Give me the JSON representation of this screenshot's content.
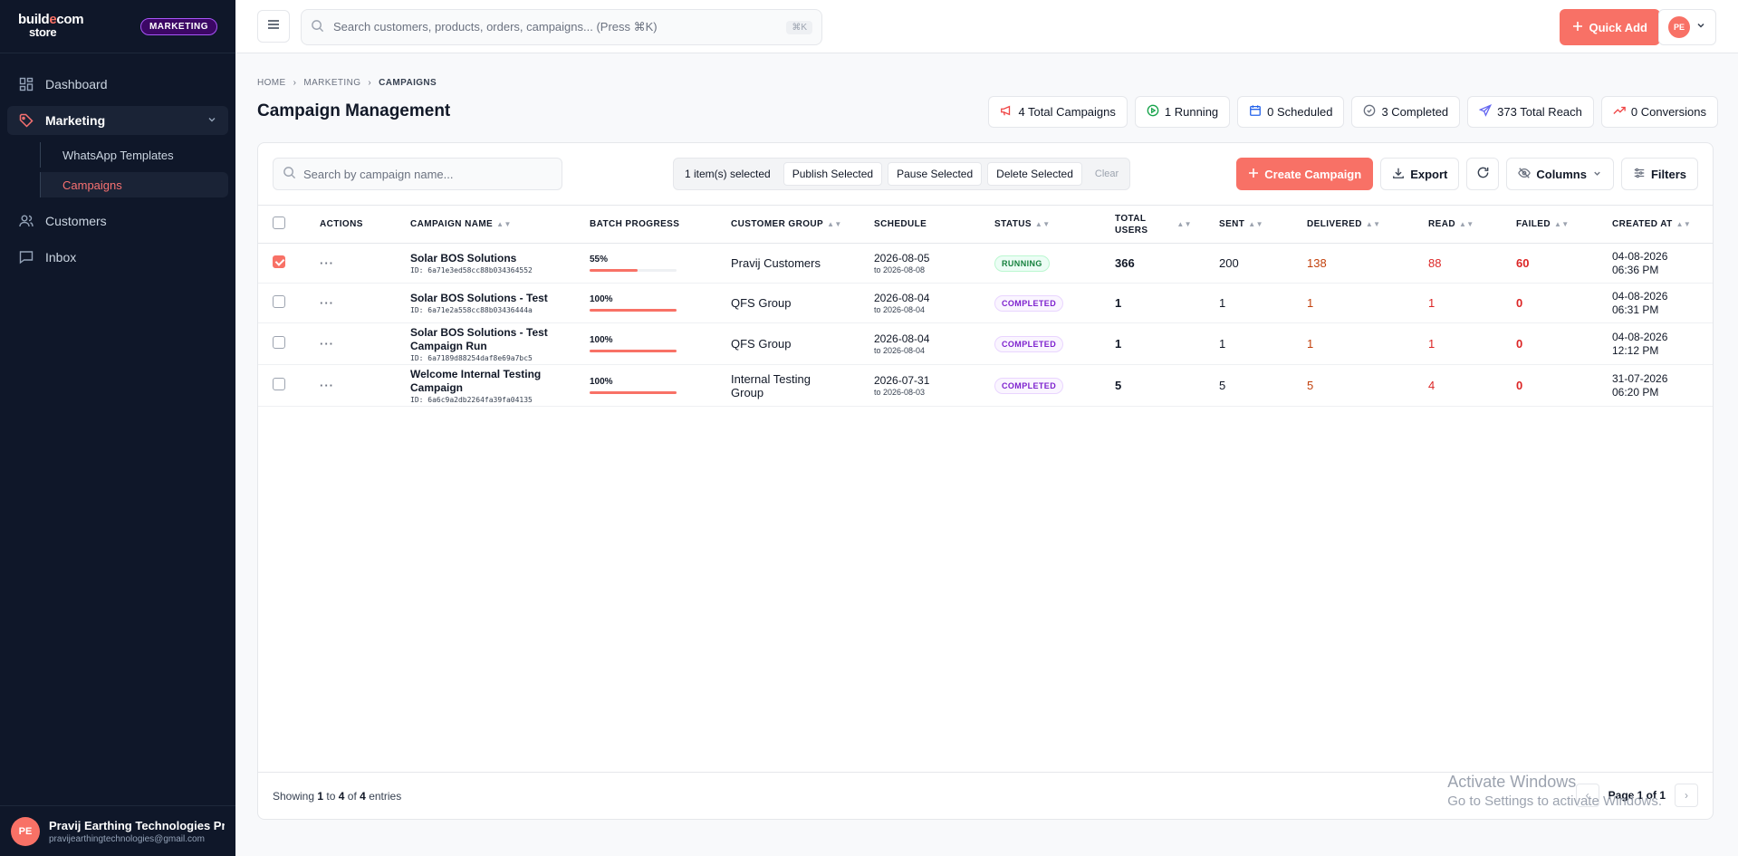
{
  "brand": {
    "name_line1": "build",
    "name_e": "e",
    "name_line1b": "com",
    "name_line2": "store",
    "badge": "MARKETING"
  },
  "sidebar": {
    "items": [
      {
        "label": "Dashboard"
      },
      {
        "label": "Marketing"
      },
      {
        "label": "Customers"
      },
      {
        "label": "Inbox"
      }
    ],
    "subitems": [
      {
        "label": "WhatsApp Templates"
      },
      {
        "label": "Campaigns"
      }
    ],
    "user": {
      "initials": "PE",
      "name": "Pravij Earthing Technologies Pr...",
      "email": "pravijearthingtechnologies@gmail.com"
    }
  },
  "topbar": {
    "search_placeholder": "Search customers, products, orders, campaigns... (Press ⌘K)",
    "search_kbd": "⌘K",
    "quick_add": "Quick Add",
    "profile_initials": "PE"
  },
  "breadcrumb": [
    "HOME",
    "MARKETING",
    "CAMPAIGNS"
  ],
  "page_title": "Campaign Management",
  "stats": [
    {
      "label": "4 Total Campaigns",
      "icon": "megaphone-icon",
      "color": "#ef4444"
    },
    {
      "label": "1 Running",
      "icon": "play-circle-icon",
      "color": "#16a34a"
    },
    {
      "label": "0 Scheduled",
      "icon": "calendar-icon",
      "color": "#2563eb"
    },
    {
      "label": "3 Completed",
      "icon": "check-circle-icon",
      "color": "#6b7280"
    },
    {
      "label": "373 Total Reach",
      "icon": "send-icon",
      "color": "#6366f1"
    },
    {
      "label": "0 Conversions",
      "icon": "trending-up-icon",
      "color": "#ef4444"
    }
  ],
  "toolbar": {
    "search_placeholder": "Search by campaign name...",
    "selected_text": "1 item(s) selected",
    "publish": "Publish Selected",
    "pause": "Pause Selected",
    "delete": "Delete Selected",
    "clear": "Clear",
    "create": "Create Campaign",
    "export": "Export",
    "columns": "Columns",
    "filters": "Filters"
  },
  "table": {
    "headers": {
      "actions": "ACTIONS",
      "name": "CAMPAIGN NAME",
      "progress": "BATCH PROGRESS",
      "group": "CUSTOMER GROUP",
      "schedule": "SCHEDULE",
      "status": "STATUS",
      "total_1": "TOTAL",
      "total_2": "USERS",
      "sent": "SENT",
      "delivered": "DELIVERED",
      "read": "READ",
      "failed": "FAILED",
      "created": "CREATED AT"
    },
    "rows": [
      {
        "checked": true,
        "name_1": "Solar BOS Solutions",
        "name_2": "",
        "id": "ID: 6a71e3ed58cc88b034364552",
        "progress_label": "55%",
        "progress": 0.55,
        "group_1": "Pravij Customers",
        "group_2": "",
        "schedule": "2026-08-05",
        "schedule_to": "to 2026-08-08",
        "status": "RUNNING",
        "status_type": "running",
        "total": "366",
        "sent": "200",
        "delivered": "138",
        "read": "88",
        "failed": "60",
        "created_1": "04-08-2026",
        "created_2": "06:36 PM"
      },
      {
        "checked": false,
        "name_1": "Solar BOS Solutions - Test",
        "name_2": "",
        "id": "ID: 6a71e2a558cc88b03436444a",
        "progress_label": "100%",
        "progress": 1.0,
        "group_1": "QFS Group",
        "group_2": "",
        "schedule": "2026-08-04",
        "schedule_to": "to 2026-08-04",
        "status": "COMPLETED",
        "status_type": "completed",
        "total": "1",
        "sent": "1",
        "delivered": "1",
        "read": "1",
        "failed": "0",
        "created_1": "04-08-2026",
        "created_2": "06:31 PM"
      },
      {
        "checked": false,
        "name_1": "Solar BOS Solutions - Test",
        "name_2": "Campaign Run",
        "id": "ID: 6a7189d88254daf8e69a7bc5",
        "progress_label": "100%",
        "progress": 1.0,
        "group_1": "QFS Group",
        "group_2": "",
        "schedule": "2026-08-04",
        "schedule_to": "to 2026-08-04",
        "status": "COMPLETED",
        "status_type": "completed",
        "total": "1",
        "sent": "1",
        "delivered": "1",
        "read": "1",
        "failed": "0",
        "created_1": "04-08-2026",
        "created_2": "12:12 PM"
      },
      {
        "checked": false,
        "name_1": "Welcome Internal Testing",
        "name_2": "Campaign",
        "id": "ID: 6a6c9a2db2264fa39fa04135",
        "progress_label": "100%",
        "progress": 1.0,
        "group_1": "Internal Testing",
        "group_2": "Group",
        "schedule": "2026-07-31",
        "schedule_to": "to 2026-08-03",
        "status": "COMPLETED",
        "status_type": "completed",
        "total": "5",
        "sent": "5",
        "delivered": "5",
        "read": "4",
        "failed": "0",
        "created_1": "31-07-2026",
        "created_2": "06:20 PM"
      }
    ]
  },
  "footer": {
    "showing_prefix": "Showing",
    "from": "1",
    "to_word": "to",
    "to": "4",
    "of_word": "of",
    "total": "4",
    "entries": "entries",
    "page": "Page 1 of 1"
  },
  "watermark": {
    "line1": "Activate Windows",
    "line2": "Go to Settings to activate Windows."
  }
}
